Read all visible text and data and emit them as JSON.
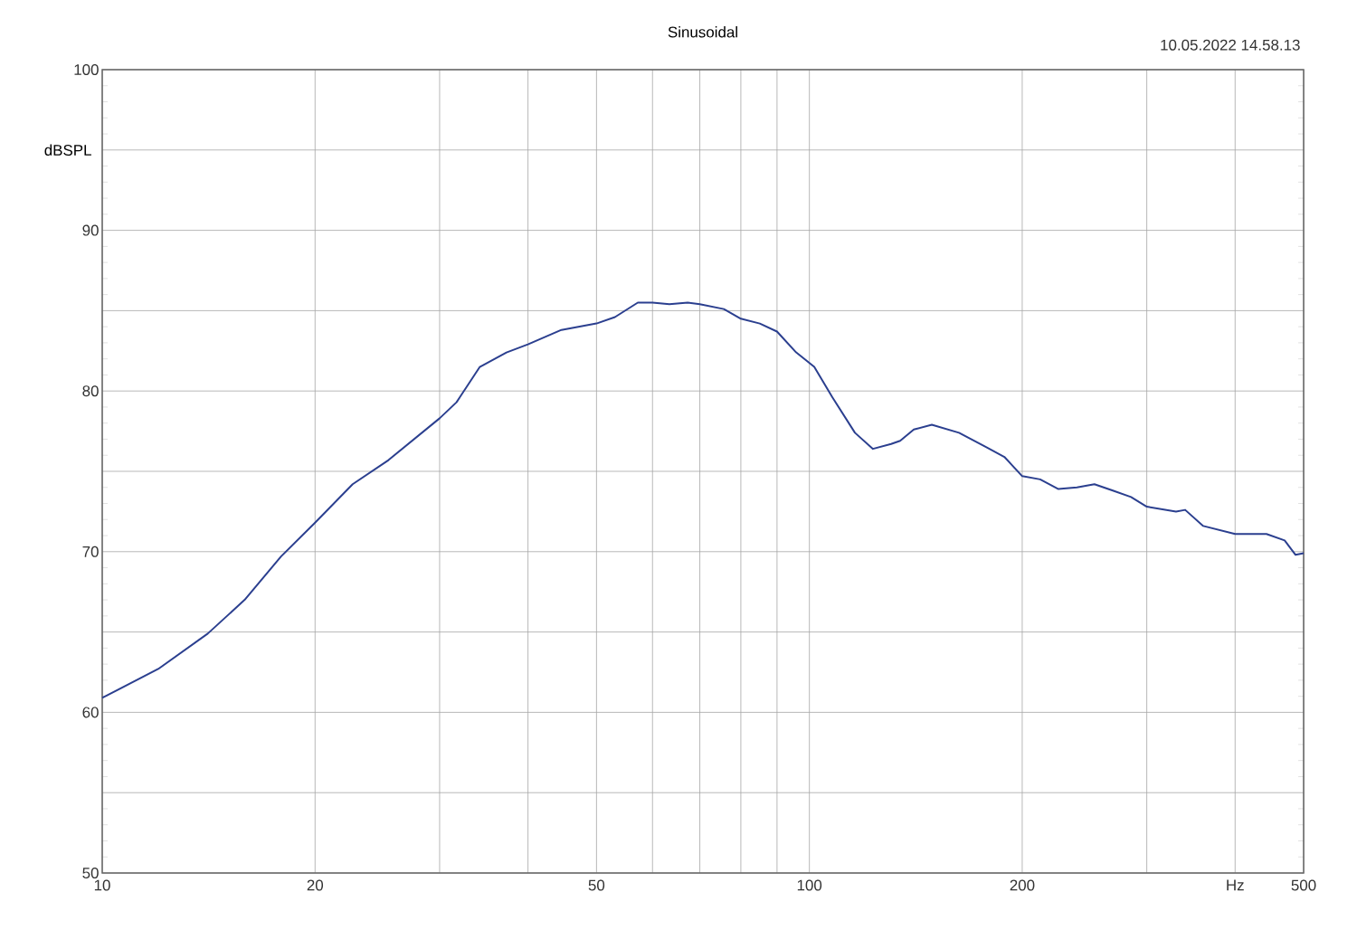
{
  "chart_data": {
    "type": "line",
    "title": "Sinusoidal",
    "ylabel": "dBSPL",
    "annotations": [
      "10.05.2022 14.58.13"
    ],
    "log": "x",
    "grid": true,
    "marker": "none",
    "line_style": "solid",
    "xlim": [
      10,
      500
    ],
    "ylim": [
      50,
      100
    ],
    "xticks": [
      10,
      20,
      {
        "value": 30,
        "label": null
      },
      {
        "value": 40,
        "label": null
      },
      50,
      {
        "value": 60,
        "label": null
      },
      {
        "value": 70,
        "label": null
      },
      {
        "value": 80,
        "label": null
      },
      {
        "value": 90,
        "label": null
      },
      100,
      200,
      {
        "value": 300,
        "label": null
      },
      {
        "value": 400,
        "label": "Hz"
      },
      500
    ],
    "yticks": [
      50,
      {
        "value": 55,
        "label": null
      },
      60,
      {
        "value": 65,
        "label": null
      },
      70,
      {
        "value": 75,
        "label": null
      },
      80,
      {
        "value": 85,
        "label": null
      },
      90,
      {
        "value": 95,
        "label": null
      },
      100
    ],
    "x": [
      10,
      12.0,
      14.1,
      15.9,
      17.9,
      20,
      22.6,
      25.4,
      30,
      31.7,
      34.2,
      37.3,
      40,
      44.6,
      50,
      53.1,
      57.2,
      60,
      63.4,
      67.3,
      70,
      75.7,
      80,
      85.1,
      90,
      95.8,
      101.6,
      107.8,
      116,
      123,
      130.5,
      134.4,
      140.5,
      149,
      162.8,
      178,
      188.7,
      200,
      212,
      225,
      239,
      253,
      268.6,
      285,
      300,
      330,
      340,
      360.6,
      400,
      443,
      470,
      487,
      500
    ],
    "series": [
      {
        "color": "#2b3f8f",
        "values": [
          60.9,
          62.7,
          64.9,
          67.0,
          69.7,
          71.8,
          74.2,
          75.7,
          78.3,
          79.3,
          81.5,
          82.4,
          82.9,
          83.8,
          84.2,
          84.6,
          85.5,
          85.5,
          85.4,
          85.5,
          85.4,
          85.1,
          84.5,
          84.2,
          83.7,
          82.4,
          81.5,
          79.6,
          77.4,
          76.4,
          76.7,
          76.9,
          77.6,
          77.9,
          77.4,
          76.5,
          75.9,
          74.7,
          74.5,
          73.9,
          74.0,
          74.2,
          73.8,
          73.4,
          72.8,
          72.5,
          72.6,
          71.6,
          71.1,
          71.1,
          70.7,
          69.8,
          69.9
        ]
      }
    ]
  }
}
